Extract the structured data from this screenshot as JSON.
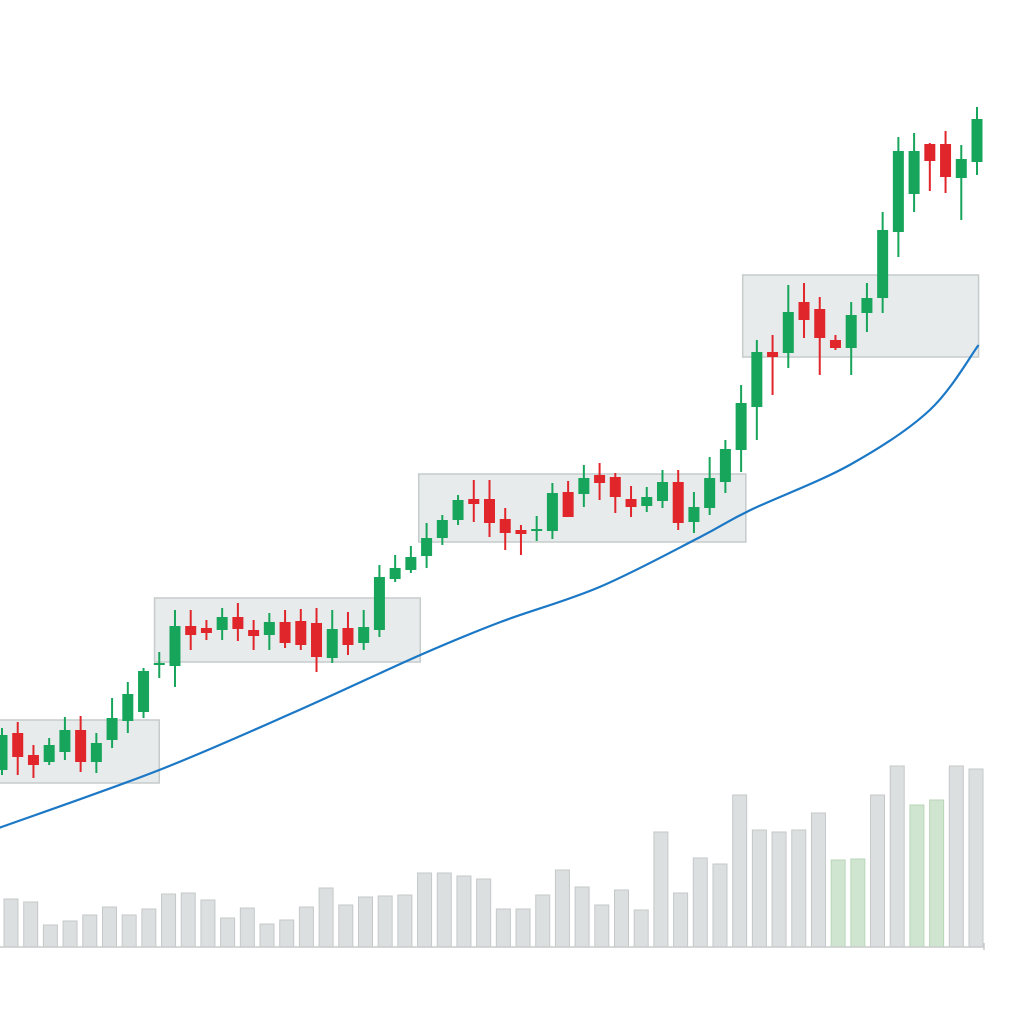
{
  "chart_data": {
    "type": "candlestick",
    "title": "",
    "xlabel": "",
    "ylabel": "",
    "grid": false,
    "legend": "none",
    "price_range": [
      100,
      900
    ],
    "colors": {
      "up": "#16a55a",
      "down": "#e0262b",
      "moving_average": "#1b78c6",
      "zone_fill": "#e7ebeb",
      "zone_stroke": "#c6cbcb",
      "volume": "#dcdfe0",
      "volume_stroke": "#c4c8c9",
      "volume_up": "#cfe5cf",
      "volume_up_stroke": "#b9d6b9"
    },
    "candles_ohlc": [
      [
        230,
        272,
        225,
        265
      ],
      [
        267,
        278,
        225,
        243
      ],
      [
        245,
        255,
        222,
        235
      ],
      [
        238,
        262,
        235,
        255
      ],
      [
        248,
        283,
        240,
        270
      ],
      [
        270,
        284,
        228,
        238
      ],
      [
        238,
        267,
        227,
        257
      ],
      [
        260,
        302,
        252,
        282
      ],
      [
        279,
        318,
        267,
        306
      ],
      [
        288,
        332,
        282,
        329
      ],
      [
        335,
        348,
        322,
        337
      ],
      [
        334,
        390,
        313,
        374
      ],
      [
        374,
        390,
        350,
        365
      ],
      [
        372,
        380,
        360,
        367
      ],
      [
        370,
        392,
        360,
        383
      ],
      [
        383,
        397,
        359,
        371
      ],
      [
        370,
        380,
        350,
        364
      ],
      [
        365,
        387,
        350,
        378
      ],
      [
        378,
        390,
        352,
        357
      ],
      [
        379,
        391,
        350,
        355
      ],
      [
        377,
        392,
        328,
        343
      ],
      [
        342,
        390,
        337,
        371
      ],
      [
        372,
        388,
        345,
        355
      ],
      [
        357,
        390,
        350,
        373
      ],
      [
        370,
        435,
        363,
        423
      ],
      [
        421,
        445,
        418,
        432
      ],
      [
        430,
        454,
        427,
        443
      ],
      [
        444,
        477,
        432,
        462
      ],
      [
        462,
        485,
        455,
        480
      ],
      [
        480,
        505,
        475,
        500
      ],
      [
        501,
        520,
        478,
        496
      ],
      [
        501,
        520,
        463,
        477
      ],
      [
        481,
        492,
        450,
        467
      ],
      [
        470,
        475,
        445,
        466
      ],
      [
        470,
        484,
        459,
        471
      ],
      [
        469,
        517,
        461,
        507
      ],
      [
        508,
        519,
        483,
        483
      ],
      [
        506,
        535,
        493,
        522
      ],
      [
        525,
        537,
        500,
        517
      ],
      [
        523,
        527,
        487,
        503
      ],
      [
        501,
        514,
        483,
        493
      ],
      [
        494,
        513,
        488,
        503
      ],
      [
        499,
        530,
        492,
        518
      ],
      [
        518,
        530,
        470,
        477
      ],
      [
        478,
        508,
        467,
        493
      ],
      [
        492,
        543,
        485,
        522
      ],
      [
        518,
        560,
        507,
        551
      ],
      [
        550,
        615,
        528,
        597
      ],
      [
        593,
        660,
        560,
        648
      ],
      [
        648,
        665,
        605,
        643
      ],
      [
        647,
        715,
        632,
        688
      ],
      [
        698,
        717,
        662,
        680
      ],
      [
        691,
        703,
        625,
        662
      ],
      [
        660,
        665,
        650,
        652
      ],
      [
        652,
        698,
        625,
        685
      ],
      [
        687,
        717,
        668,
        702
      ],
      [
        702,
        788,
        687,
        770
      ],
      [
        768,
        863,
        743,
        849
      ],
      [
        806,
        867,
        788,
        849
      ],
      [
        856,
        857,
        809,
        839
      ],
      [
        856,
        869,
        807,
        823
      ],
      [
        822,
        855,
        780,
        841
      ],
      [
        838,
        893,
        825,
        881
      ]
    ],
    "consolidation_zones": [
      {
        "start_index": -0.2,
        "end_index": 10.0,
        "low": 217,
        "high": 280
      },
      {
        "start_index": 9.7,
        "end_index": 26.6,
        "low": 338,
        "high": 402
      },
      {
        "start_index": 26.5,
        "end_index": 47.3,
        "low": 458,
        "high": 526
      },
      {
        "start_index": 47.1,
        "end_index": 62.1,
        "low": 643,
        "high": 725
      }
    ],
    "moving_average": [
      [
        -0.2,
        172
      ],
      [
        10.0,
        230
      ],
      [
        18.9,
        290
      ],
      [
        26.6,
        345
      ],
      [
        31.7,
        378
      ],
      [
        38.0,
        413
      ],
      [
        44.4,
        463
      ],
      [
        47.6,
        490
      ],
      [
        53.9,
        535
      ],
      [
        59.0,
        590
      ],
      [
        62.1,
        655
      ]
    ],
    "volume": [
      48,
      45,
      22,
      26,
      32,
      40,
      32,
      38,
      53,
      54,
      47,
      29,
      39,
      23,
      27,
      40,
      59,
      42,
      50,
      51,
      52,
      74,
      74,
      71,
      68,
      38,
      38,
      52,
      77,
      60,
      42,
      57,
      37,
      115,
      54,
      89,
      83,
      152,
      117,
      115,
      117,
      134,
      87,
      88,
      152,
      181,
      142,
      147,
      181,
      178
    ],
    "volume_up_indices": [
      42,
      43,
      46,
      47
    ]
  }
}
